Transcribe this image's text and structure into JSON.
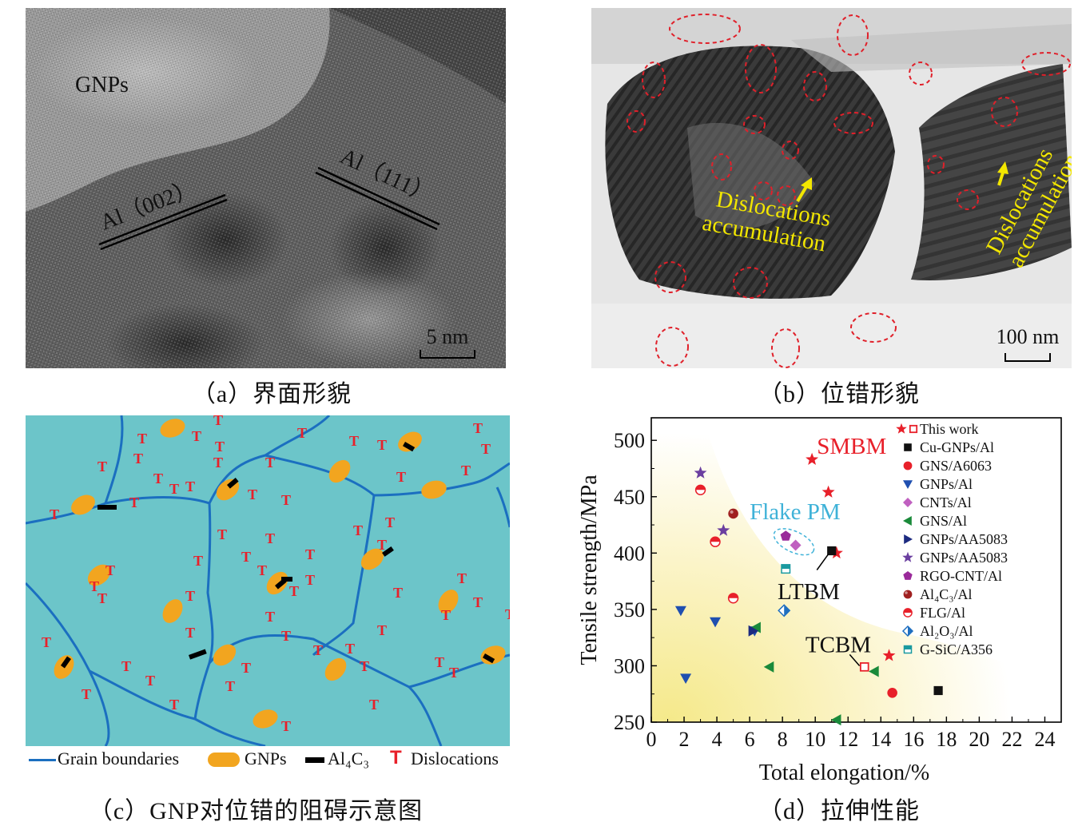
{
  "figure": {
    "captions": {
      "a": "（a）界面形貌",
      "b": "（b）位错形貌",
      "c": "（c）GNP对位错的阻碍示意图",
      "d": "（d）拉伸性能"
    },
    "panel_a": {
      "gnps_label": "GNPs",
      "plane_left": "Al（002）",
      "plane_right": "Al（111）",
      "scale_bar": "5 nm"
    },
    "panel_b": {
      "annotation_left": [
        "Dislocations",
        "accumulation"
      ],
      "annotation_right": [
        "Dislocations",
        "accumulation"
      ],
      "scale_bar": "100 nm",
      "annotation_color": "#f2e600",
      "circle_color": "#e0202a"
    },
    "panel_c": {
      "background_color": "#6cc5c9",
      "boundary_color": "#1b6fc0",
      "gnp_color": "#f2a51f",
      "dislocation_color": "#e8202a",
      "legend": {
        "boundaries": "Grain boundaries",
        "gnps": "GNPs",
        "al4c3": "Al₄C₃",
        "dislocation_symbol": "T",
        "dislocations": "Dislocations"
      }
    }
  },
  "chart_data": {
    "type": "scatter",
    "xlabel": "Total elongation/%",
    "ylabel": "Tensile strength/MPa",
    "xlim": [
      0,
      25
    ],
    "ylim": [
      250,
      520
    ],
    "xticks": [
      0,
      2,
      4,
      6,
      8,
      10,
      12,
      14,
      16,
      18,
      20,
      22,
      24
    ],
    "yticks": [
      250,
      300,
      350,
      400,
      450,
      500
    ],
    "legend_position": "top-right",
    "annotations": [
      "SMBM",
      "Flake PM",
      "LTBM",
      "TCBM"
    ],
    "series": [
      {
        "name": "This work",
        "marker": "star",
        "color": "#e8202a",
        "points": [
          [
            9.8,
            483
          ],
          [
            10.8,
            454
          ],
          [
            11.3,
            400
          ],
          [
            14.5,
            309
          ]
        ]
      },
      {
        "name": "This work",
        "marker": "square-open",
        "color": "#e8202a",
        "points": [
          [
            13,
            299
          ]
        ]
      },
      {
        "name": "Cu-GNPs/Al",
        "marker": "square",
        "color": "#111111",
        "points": [
          [
            11,
            402
          ],
          [
            17.5,
            278
          ]
        ]
      },
      {
        "name": "GNS/A6063",
        "marker": "circle",
        "color": "#e8202a",
        "points": [
          [
            14.7,
            276
          ]
        ]
      },
      {
        "name": "GNPs/Al",
        "marker": "triangle-down",
        "color": "#1f4fb0",
        "points": [
          [
            1.8,
            349
          ],
          [
            2.1,
            289
          ],
          [
            3.9,
            339
          ],
          [
            6.3,
            331
          ]
        ]
      },
      {
        "name": "CNTs/Al",
        "marker": "diamond",
        "color": "#c060c0",
        "points": [
          [
            8.8,
            407
          ]
        ]
      },
      {
        "name": "GNS/Al",
        "marker": "triangle-left",
        "color": "#1a8a3a",
        "points": [
          [
            6.4,
            334
          ],
          [
            7.2,
            299
          ],
          [
            13.6,
            295
          ],
          [
            11.3,
            252
          ]
        ]
      },
      {
        "name": "GNPs/AA5083",
        "marker": "triangle-right",
        "color": "#1c2a80",
        "points": [
          [
            6.2,
            331
          ]
        ]
      },
      {
        "name": "GNPs/AA5083",
        "marker": "star",
        "color": "#6b3fa0",
        "points": [
          [
            3,
            471
          ],
          [
            4.4,
            420
          ]
        ]
      },
      {
        "name": "RGO-CNT/Al",
        "marker": "pentagon",
        "color": "#9a2a9a",
        "points": [
          [
            8.2,
            415
          ]
        ]
      },
      {
        "name": "Al₄C₃/Al",
        "marker": "ball",
        "color": "#a02020",
        "points": [
          [
            5,
            435
          ]
        ]
      },
      {
        "name": "FLG/Al",
        "marker": "half-circle",
        "color": "#e8202a",
        "points": [
          [
            3,
            456
          ],
          [
            3.9,
            410
          ],
          [
            5,
            360
          ]
        ]
      },
      {
        "name": "Al₂O₃/Al",
        "marker": "half-diamond",
        "color": "#1f6fc0",
        "points": [
          [
            8.1,
            349
          ]
        ]
      },
      {
        "name": "G-SiC/A356",
        "marker": "half-square",
        "color": "#1a9aa0",
        "points": [
          [
            8.2,
            386
          ]
        ]
      }
    ]
  }
}
